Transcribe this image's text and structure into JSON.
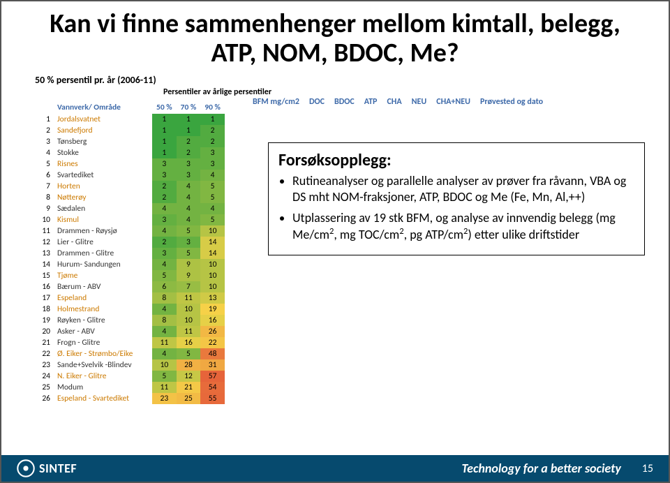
{
  "title": "Kan vi finne sammenhenger mellom kimtall, belegg,  ATP, NOM, BDOC, Me?",
  "subhead": "50  % persentil pr. år (2006-11)",
  "subhead2": "Persentiler av årlige persentiler",
  "table": {
    "col1_header": "Vannverk/ Område",
    "cols": [
      "50 %",
      "70 %",
      "90 %"
    ],
    "gradient": {
      "min_color": "#3aa53f",
      "mid_color": "#f6d448",
      "max_color": "#e6643a",
      "min_value": 1,
      "max_value": 57
    },
    "row_name_colors": [
      "#cc7a00",
      "#cc7a00",
      "#333",
      "#333",
      "#cc7a00",
      "#333",
      "#cc7a00",
      "#cc7a00",
      "#333",
      "#cc7a00",
      "#333",
      "#333",
      "#333",
      "#333",
      "#cc7a00",
      "#333",
      "#cc7a00",
      "#cc7a00",
      "#333",
      "#333",
      "#333",
      "#cc7a00",
      "#333",
      "#cc7a00",
      "#333",
      "#cc7a00"
    ],
    "rows": [
      [
        "Jordalsvatnet",
        1,
        1,
        1
      ],
      [
        "Sandefjord",
        1,
        1,
        2
      ],
      [
        "Tønsberg",
        1,
        2,
        2
      ],
      [
        "Stokke",
        1,
        2,
        3
      ],
      [
        "Risnes",
        3,
        3,
        3
      ],
      [
        "Svartediket",
        3,
        3,
        4
      ],
      [
        "Horten",
        2,
        4,
        5
      ],
      [
        "Nøtterøy",
        2,
        4,
        5
      ],
      [
        "Sædalen",
        4,
        4,
        4
      ],
      [
        "Kismul",
        3,
        4,
        5
      ],
      [
        "Drammen - Røysjø",
        4,
        5,
        10
      ],
      [
        "Lier - Glitre",
        2,
        3,
        14
      ],
      [
        "Drammen - Glitre",
        3,
        5,
        14
      ],
      [
        "Hurum- Sandungen",
        4,
        9,
        10
      ],
      [
        "Tjøme",
        5,
        9,
        10
      ],
      [
        "Bærum - ABV",
        6,
        7,
        10
      ],
      [
        "Espeland",
        8,
        11,
        13
      ],
      [
        "Holmestrand",
        4,
        10,
        19
      ],
      [
        "Røyken - Glitre",
        8,
        10,
        16
      ],
      [
        "Asker - ABV",
        4,
        11,
        26
      ],
      [
        "Frogn - Glitre",
        11,
        16,
        22
      ],
      [
        "Ø. Eiker - Strømbo/Eike",
        4,
        5,
        48
      ],
      [
        "Sande+Svelvik -Blindev",
        10,
        28,
        31
      ],
      [
        "N. Eiker - Glitre",
        5,
        12,
        57
      ],
      [
        "Modum",
        11,
        21,
        54
      ],
      [
        "Espeland - Svartediket",
        23,
        25,
        55
      ]
    ]
  },
  "extra_headers": [
    "BFM mg/cm2",
    "DOC",
    "BDOC",
    "ATP",
    "CHA",
    "NEU",
    "CHA+NEU",
    "Prøvested og dato"
  ],
  "box": {
    "title": "Forsøksopplegg:",
    "bullets": [
      "Rutineanalyser og parallelle analyser av prøver fra råvann, VBA og DS mht NOM-fraksjoner, ATP, BDOC og Me (Fe, Mn, Al,++)",
      "Utplassering av 19 stk BFM, og analyse av innvendig belegg (mg Me/cm<sup>2</sup>, mg TOC/cm<sup>2</sup>, pg ATP/cm<sup>2</sup>) etter ulike driftstider"
    ]
  },
  "footer": {
    "logo_text": "SINTEF",
    "tagline": "Technology for a better society",
    "page_number": "15"
  }
}
